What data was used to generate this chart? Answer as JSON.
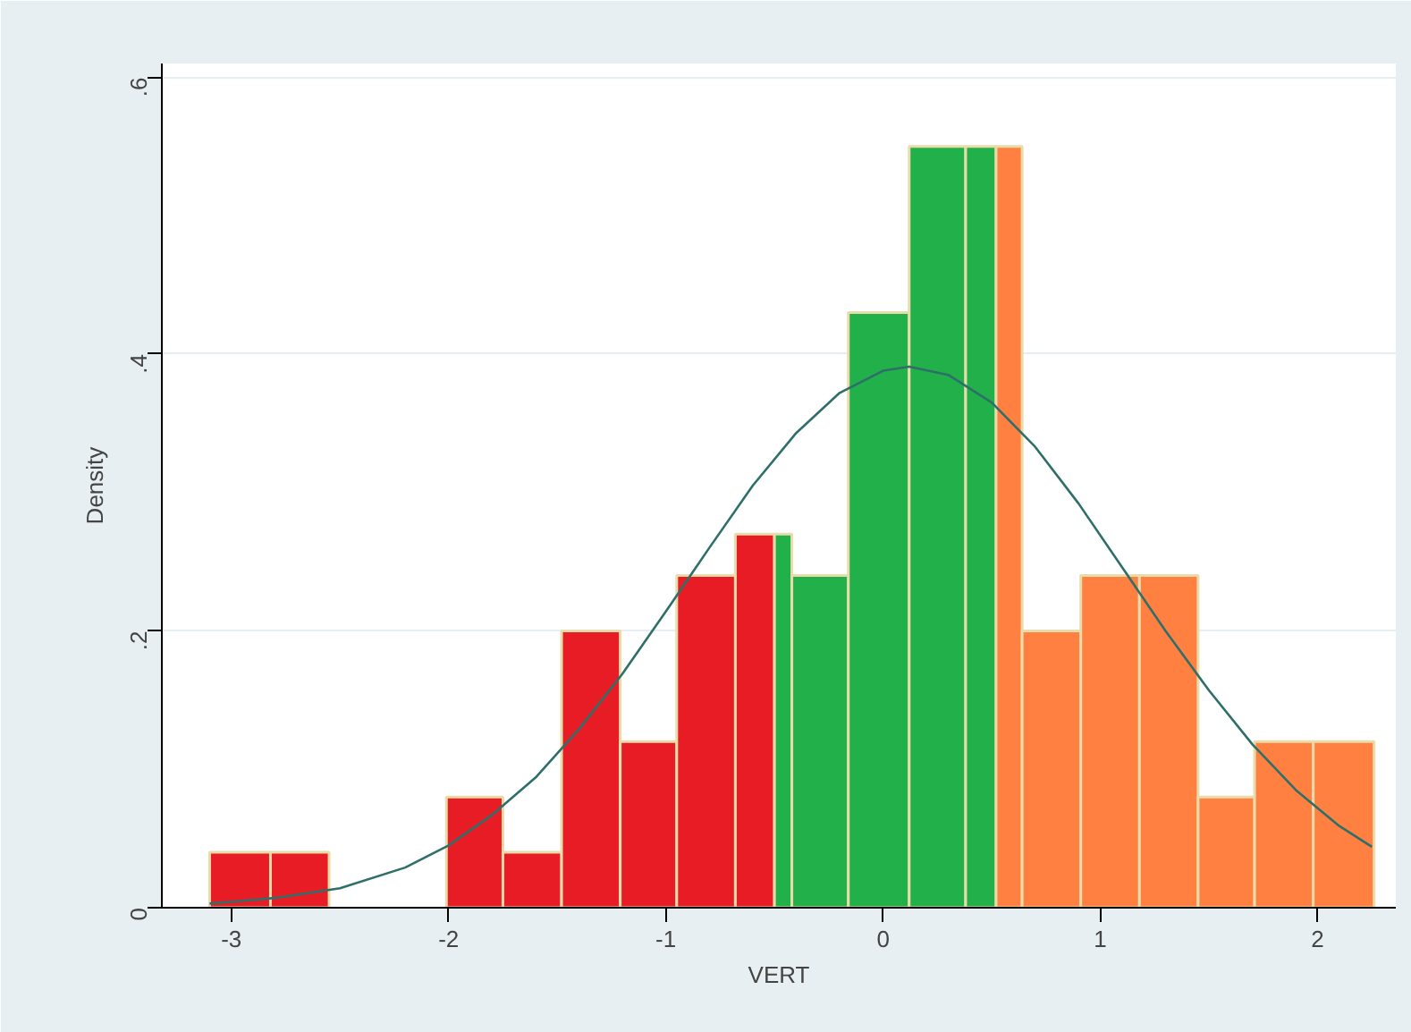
{
  "chart_data": {
    "type": "histogram",
    "xlabel": "VERT",
    "ylabel": "Density",
    "xlim": [
      -3.32,
      2.36
    ],
    "ylim": [
      0,
      0.61
    ],
    "xticks": [
      -3,
      -2,
      -1,
      0,
      1,
      2
    ],
    "yticks": [
      0,
      {
        "value": 0.2,
        "label": ".2"
      },
      {
        "value": 0.4,
        "label": ".4"
      },
      {
        "value": 0.6,
        "label": ".6"
      }
    ],
    "grid": "y",
    "series": [
      {
        "color": "#e81c24",
        "bins": [
          -3.1,
          -2.82,
          -2.55,
          -2.01,
          -1.75,
          -1.48,
          -1.21,
          -0.95,
          -0.68,
          -0.5
        ],
        "values": [
          0.04,
          0.04,
          0,
          0.08,
          0.04,
          0.2,
          0.12,
          0.24,
          0.27
        ]
      },
      {
        "color": "#22b04b",
        "bins": [
          -0.5,
          -0.42,
          -0.16,
          0.12,
          0.38,
          0.52
        ],
        "values": [
          0.27,
          0.24,
          0.43,
          0.55,
          0.55
        ]
      },
      {
        "color": "#ff8040",
        "bins": [
          0.52,
          0.64,
          0.91,
          1.18,
          1.45,
          1.71,
          1.98,
          2.26
        ],
        "values": [
          0.55,
          0.2,
          0.24,
          0.24,
          0.08,
          0.12,
          0.12
        ]
      },
      {
        "type": "line",
        "color": "#2f6f6a",
        "x": [
          -3.1,
          -2.8,
          -2.5,
          -2.2,
          -2.0,
          -1.8,
          -1.6,
          -1.4,
          -1.2,
          -1.0,
          -0.8,
          -0.6,
          -0.4,
          -0.2,
          0,
          0.12,
          0.3,
          0.5,
          0.7,
          0.9,
          1.1,
          1.3,
          1.5,
          1.7,
          1.9,
          2.1,
          2.25
        ],
        "values": [
          0.003,
          0.007,
          0.014,
          0.029,
          0.045,
          0.067,
          0.094,
          0.129,
          0.169,
          0.214,
          0.26,
          0.305,
          0.343,
          0.372,
          0.388,
          0.391,
          0.385,
          0.365,
          0.333,
          0.292,
          0.246,
          0.2,
          0.157,
          0.118,
          0.085,
          0.059,
          0.044
        ]
      }
    ]
  }
}
